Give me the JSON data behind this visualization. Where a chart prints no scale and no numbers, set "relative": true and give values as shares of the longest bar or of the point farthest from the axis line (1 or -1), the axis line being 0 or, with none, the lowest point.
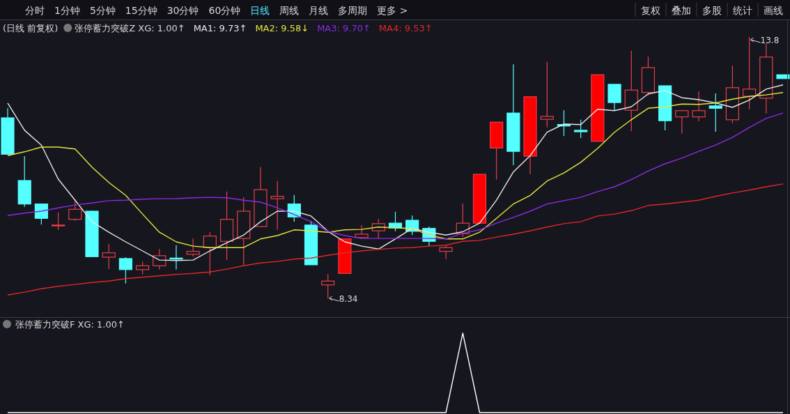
{
  "chart_data": [
    {
      "type": "candlestick",
      "title": "(日线 前复权)",
      "subtitle": "张停蓄力突破Z XG: 1.00↑",
      "legend": "top",
      "categories": [
        null,
        null,
        null,
        null,
        null,
        null,
        null,
        null,
        null,
        null,
        null,
        null,
        null,
        null,
        null,
        null,
        null,
        null,
        null,
        null,
        null,
        null,
        null,
        null,
        null,
        null,
        null,
        null,
        null,
        null,
        null,
        null,
        null,
        null,
        null,
        null,
        null,
        null,
        null,
        null,
        null,
        null,
        null,
        null,
        null,
        null,
        null
      ],
      "color": "#e8404a",
      "colors": [
        "#54ffff",
        "#54ffff",
        "#54ffff",
        "#16161e",
        "#16161e",
        "#54ffff",
        "#16161e",
        "#54ffff",
        "#16161e",
        "#16161e",
        "#54ffff",
        "#16161e",
        "#16161e",
        "#16161e",
        "#16161e",
        "#16161e",
        "#16161e",
        "#54ffff",
        "#54ffff",
        "#16161e",
        "#ff0000",
        "#16161e",
        "#16161e",
        "#54ffff",
        "#54ffff",
        "#54ffff",
        "#16161e",
        "#16161e",
        "#ff0000",
        "#ff0000",
        "#54ffff",
        "#ff0000",
        "#16161e",
        "#54ffff",
        "#54ffff",
        "#ff0000",
        "#54ffff",
        "#16161e",
        "#16161e",
        "#54ffff",
        "#16161e",
        "#16161e",
        "#54ffff",
        "#16161e",
        "#16161e",
        "#16161e",
        "#54ffff"
      ],
      "ohlc": [
        [
          12.11,
          12.31,
          11.35,
          11.35
        ],
        [
          10.8,
          11.31,
          10.25,
          10.31
        ],
        [
          10.31,
          10.32,
          9.88,
          10.01
        ],
        [
          9.86,
          10.13,
          9.77,
          9.87
        ],
        [
          9.99,
          10.38,
          9.96,
          10.2
        ],
        [
          10.16,
          10.17,
          9.21,
          9.21
        ],
        [
          9.2,
          9.48,
          8.95,
          9.29
        ],
        [
          9.17,
          9.2,
          8.65,
          8.94
        ],
        [
          8.94,
          9.11,
          8.84,
          9.02
        ],
        [
          9.02,
          9.37,
          8.94,
          9.23
        ],
        [
          9.18,
          9.45,
          8.94,
          9.16
        ],
        [
          9.26,
          9.59,
          9.21,
          9.32
        ],
        [
          9.4,
          9.72,
          8.82,
          9.64
        ],
        [
          9.53,
          10.57,
          9.14,
          9.99
        ],
        [
          9.59,
          10.45,
          9.04,
          10.16
        ],
        [
          9.84,
          11.08,
          9.84,
          10.61
        ],
        [
          10.42,
          10.79,
          9.77,
          10.47
        ],
        [
          10.31,
          10.5,
          9.94,
          10.04
        ],
        [
          9.87,
          9.96,
          9.04,
          9.04
        ],
        [
          8.62,
          8.85,
          8.34,
          8.7
        ],
        [
          8.86,
          9.58,
          8.86,
          9.58
        ],
        [
          9.61,
          9.87,
          9.58,
          9.68
        ],
        [
          9.75,
          10.0,
          9.59,
          9.9
        ],
        [
          9.91,
          10.15,
          9.74,
          9.81
        ],
        [
          9.97,
          10.07,
          9.66,
          9.74
        ],
        [
          9.8,
          9.84,
          9.43,
          9.53
        ],
        [
          9.32,
          9.45,
          9.16,
          9.4
        ],
        [
          9.69,
          10.32,
          9.62,
          9.91
        ],
        [
          9.91,
          10.93,
          9.91,
          10.93
        ],
        [
          11.48,
          12.02,
          10.82,
          12.02
        ],
        [
          12.21,
          13.23,
          11.12,
          11.41
        ],
        [
          11.31,
          12.55,
          10.93,
          12.55
        ],
        [
          12.08,
          13.28,
          11.91,
          12.14
        ],
        [
          11.97,
          12.27,
          11.73,
          11.94
        ],
        [
          11.85,
          12.07,
          11.69,
          11.82
        ],
        [
          11.62,
          13.01,
          11.62,
          13.01
        ],
        [
          12.81,
          12.81,
          12.26,
          12.43
        ],
        [
          12.27,
          13.51,
          11.83,
          12.69
        ],
        [
          12.64,
          13.39,
          12.58,
          13.16
        ],
        [
          12.78,
          12.78,
          11.85,
          12.05
        ],
        [
          12.13,
          12.27,
          11.78,
          12.26
        ],
        [
          12.13,
          12.66,
          12.04,
          12.26
        ],
        [
          12.36,
          12.62,
          11.82,
          12.31
        ],
        [
          12.07,
          13.2,
          12.0,
          12.74
        ],
        [
          12.56,
          13.8,
          12.29,
          12.71
        ],
        [
          12.52,
          13.67,
          12.2,
          13.38
        ],
        [
          13.01,
          13.01,
          12.93,
          12.93
        ]
      ],
      "series": [
        {
          "type": "line",
          "name": "MA1: 9.73↑",
          "color": "#e8e8e8",
          "values": [
            12.42,
            11.85,
            11.54,
            10.83,
            10.39,
            9.94,
            9.72,
            9.52,
            9.33,
            9.14,
            9.13,
            9.14,
            9.33,
            9.5,
            9.66,
            9.94,
            10.16,
            10.16,
            10.06,
            9.74,
            9.52,
            9.43,
            9.37,
            9.58,
            9.8,
            9.72,
            9.66,
            9.73,
            9.91,
            10.39,
            10.98,
            11.32,
            11.81,
            11.98,
            11.97,
            12.29,
            12.26,
            12.34,
            12.61,
            12.68,
            12.53,
            12.49,
            12.42,
            12.33,
            12.48,
            12.71,
            12.8
          ]
        },
        {
          "type": "line",
          "name": "MA2: 9.58↓",
          "color": "#e6e63c",
          "values": [
            11.32,
            11.4,
            11.5,
            11.5,
            11.46,
            11.08,
            10.76,
            10.49,
            10.1,
            9.72,
            9.52,
            9.43,
            9.4,
            9.4,
            9.4,
            9.58,
            9.65,
            9.77,
            9.75,
            9.72,
            9.77,
            9.78,
            9.83,
            9.81,
            9.8,
            9.66,
            9.58,
            9.58,
            9.72,
            10.01,
            10.31,
            10.49,
            10.79,
            10.96,
            11.18,
            11.47,
            11.81,
            12.07,
            12.31,
            12.34,
            12.4,
            12.39,
            12.42,
            12.5,
            12.56,
            12.59,
            12.64
          ]
        },
        {
          "type": "line",
          "name": "MA3: 9.70↑",
          "color": "#8c2ae6",
          "values": [
            10.07,
            10.12,
            10.16,
            10.23,
            10.29,
            10.33,
            10.38,
            10.39,
            10.41,
            10.42,
            10.42,
            10.44,
            10.45,
            10.44,
            10.39,
            10.35,
            10.23,
            10.09,
            9.94,
            9.74,
            9.65,
            9.59,
            9.59,
            9.59,
            9.59,
            9.59,
            9.58,
            9.7,
            9.77,
            9.91,
            10.03,
            10.16,
            10.31,
            10.38,
            10.45,
            10.57,
            10.67,
            10.82,
            11.0,
            11.15,
            11.27,
            11.41,
            11.54,
            11.7,
            11.91,
            12.1,
            12.21
          ]
        },
        {
          "type": "line",
          "name": "MA4: 9.53↑",
          "color": "#e02828",
          "values": [
            8.41,
            8.47,
            8.54,
            8.59,
            8.63,
            8.67,
            8.7,
            8.75,
            8.78,
            8.81,
            8.84,
            8.86,
            8.89,
            8.95,
            9.02,
            9.08,
            9.11,
            9.16,
            9.18,
            9.24,
            9.29,
            9.33,
            9.36,
            9.39,
            9.4,
            9.43,
            9.45,
            9.53,
            9.55,
            9.62,
            9.68,
            9.75,
            9.83,
            9.9,
            9.94,
            10.06,
            10.1,
            10.17,
            10.28,
            10.31,
            10.35,
            10.39,
            10.47,
            10.54,
            10.6,
            10.67,
            10.73
          ]
        }
      ],
      "annotations": [
        "分时",
        "1分钟",
        "5分钟",
        "15分钟",
        "30分钟",
        "60分钟",
        "日线",
        "周线",
        "月线",
        "多周期",
        "更多 >",
        "复权",
        "叠加",
        "多股",
        "统计",
        "画线",
        "8.34",
        "13.8"
      ]
    },
    {
      "type": "line",
      "title": "张停蓄力突破F XG: 1.00↑",
      "relative": true,
      "color": "#ffffff",
      "categories": [
        null,
        null,
        null,
        null,
        null,
        null,
        null,
        null,
        null,
        null,
        null,
        null,
        null,
        null,
        null,
        null,
        null,
        null,
        null,
        null,
        null,
        null,
        null,
        null,
        null,
        null,
        null,
        null,
        null,
        null,
        null,
        null,
        null,
        null,
        null,
        null,
        null,
        null,
        null,
        null,
        null,
        null,
        null,
        null,
        null,
        null,
        null
      ],
      "values": [
        0,
        0,
        0,
        0,
        0,
        0,
        0,
        0,
        0,
        0,
        0,
        0,
        0,
        0,
        0,
        0,
        0,
        0,
        0,
        0,
        0,
        0,
        0,
        0,
        0,
        0,
        0,
        1,
        0,
        0,
        0,
        0,
        0,
        0,
        0,
        0,
        0,
        0,
        0,
        0,
        0,
        0,
        0,
        0,
        0,
        0,
        0
      ]
    }
  ]
}
